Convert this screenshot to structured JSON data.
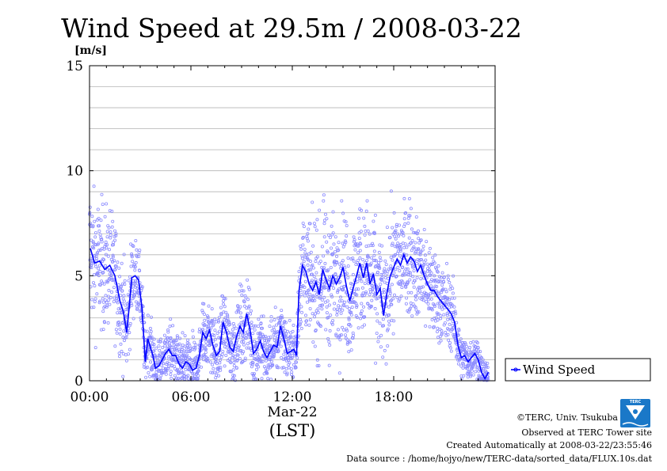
{
  "chart_data": {
    "type": "scatter",
    "title": "Wind Speed at 29.5m / 2008-03-22",
    "ylabel": "[m/s]",
    "xlabel": "(LST)",
    "date_label": "Mar-22",
    "x_unit": "hours",
    "xlim": [
      0,
      24
    ],
    "ylim": [
      0,
      15
    ],
    "yticks": [
      {
        "value": 0,
        "label": "0"
      },
      {
        "value": 5,
        "label": "5"
      },
      {
        "value": 10,
        "label": "10"
      },
      {
        "value": 15,
        "label": "15"
      }
    ],
    "xticks": [
      {
        "value": 0,
        "label": "00:00"
      },
      {
        "value": 6,
        "label": "06:00"
      },
      {
        "value": 12,
        "label": "12:00"
      },
      {
        "value": 18,
        "label": "18:00"
      }
    ],
    "grid": true,
    "legend_position": "right",
    "series": [
      {
        "name": "Wind Speed",
        "color": "#0000ff",
        "mean": [
          [
            0.05,
            6.3
          ],
          [
            0.3,
            5.6
          ],
          [
            0.6,
            5.7
          ],
          [
            0.9,
            5.3
          ],
          [
            1.2,
            5.5
          ],
          [
            1.5,
            5.0
          ],
          [
            1.8,
            3.8
          ],
          [
            2.0,
            3.3
          ],
          [
            2.2,
            2.3
          ],
          [
            2.35,
            3.5
          ],
          [
            2.5,
            4.9
          ],
          [
            2.7,
            5.0
          ],
          [
            2.9,
            4.8
          ],
          [
            3.1,
            3.5
          ],
          [
            3.3,
            0.9
          ],
          [
            3.45,
            2.0
          ],
          [
            3.6,
            1.6
          ],
          [
            3.75,
            1.2
          ],
          [
            3.9,
            0.6
          ],
          [
            4.1,
            0.7
          ],
          [
            4.3,
            1.0
          ],
          [
            4.5,
            1.3
          ],
          [
            4.7,
            1.5
          ],
          [
            4.9,
            1.2
          ],
          [
            5.1,
            1.2
          ],
          [
            5.3,
            0.8
          ],
          [
            5.5,
            0.6
          ],
          [
            5.7,
            0.9
          ],
          [
            5.9,
            0.8
          ],
          [
            6.1,
            0.5
          ],
          [
            6.3,
            0.6
          ],
          [
            6.5,
            1.2
          ],
          [
            6.7,
            2.3
          ],
          [
            6.9,
            2.0
          ],
          [
            7.1,
            2.4
          ],
          [
            7.3,
            1.7
          ],
          [
            7.5,
            1.2
          ],
          [
            7.7,
            1.4
          ],
          [
            7.9,
            2.8
          ],
          [
            8.1,
            2.3
          ],
          [
            8.3,
            1.6
          ],
          [
            8.5,
            1.4
          ],
          [
            8.7,
            2.1
          ],
          [
            8.9,
            2.6
          ],
          [
            9.1,
            2.3
          ],
          [
            9.3,
            3.2
          ],
          [
            9.5,
            2.4
          ],
          [
            9.7,
            1.3
          ],
          [
            9.9,
            1.5
          ],
          [
            10.1,
            1.9
          ],
          [
            10.3,
            1.4
          ],
          [
            10.5,
            1.1
          ],
          [
            10.7,
            1.4
          ],
          [
            10.9,
            1.7
          ],
          [
            11.1,
            1.6
          ],
          [
            11.3,
            2.6
          ],
          [
            11.5,
            2.0
          ],
          [
            11.7,
            1.3
          ],
          [
            11.9,
            1.4
          ],
          [
            12.1,
            1.5
          ],
          [
            12.25,
            1.2
          ],
          [
            12.4,
            4.3
          ],
          [
            12.6,
            5.5
          ],
          [
            12.8,
            5.2
          ],
          [
            13.0,
            4.6
          ],
          [
            13.2,
            4.3
          ],
          [
            13.4,
            4.7
          ],
          [
            13.6,
            4.1
          ],
          [
            13.8,
            5.3
          ],
          [
            14.0,
            4.8
          ],
          [
            14.2,
            4.4
          ],
          [
            14.4,
            5.0
          ],
          [
            14.6,
            4.6
          ],
          [
            14.8,
            4.9
          ],
          [
            15.0,
            5.4
          ],
          [
            15.2,
            4.5
          ],
          [
            15.4,
            3.8
          ],
          [
            15.6,
            4.4
          ],
          [
            15.8,
            5.0
          ],
          [
            16.0,
            5.6
          ],
          [
            16.2,
            4.9
          ],
          [
            16.4,
            5.6
          ],
          [
            16.6,
            4.6
          ],
          [
            16.8,
            5.1
          ],
          [
            17.0,
            4.1
          ],
          [
            17.2,
            4.4
          ],
          [
            17.4,
            3.1
          ],
          [
            17.6,
            4.2
          ],
          [
            17.8,
            5.0
          ],
          [
            18.0,
            5.4
          ],
          [
            18.2,
            5.8
          ],
          [
            18.4,
            5.5
          ],
          [
            18.6,
            6.0
          ],
          [
            18.8,
            5.6
          ],
          [
            19.0,
            5.9
          ],
          [
            19.2,
            5.7
          ],
          [
            19.4,
            5.2
          ],
          [
            19.6,
            5.5
          ],
          [
            19.8,
            5.0
          ],
          [
            20.0,
            4.6
          ],
          [
            20.2,
            4.3
          ],
          [
            20.4,
            4.3
          ],
          [
            20.6,
            4.0
          ],
          [
            20.8,
            3.8
          ],
          [
            21.0,
            3.6
          ],
          [
            21.2,
            3.4
          ],
          [
            21.4,
            3.2
          ],
          [
            21.6,
            2.8
          ],
          [
            21.8,
            1.7
          ],
          [
            22.0,
            1.1
          ],
          [
            22.2,
            1.2
          ],
          [
            22.4,
            0.9
          ],
          [
            22.6,
            1.1
          ],
          [
            22.8,
            1.3
          ],
          [
            23.0,
            1.0
          ],
          [
            23.2,
            0.4
          ],
          [
            23.4,
            0.1
          ],
          [
            23.6,
            0.4
          ]
        ],
        "spread": [
          [
            0.0,
            1.6
          ],
          [
            2.0,
            1.2
          ],
          [
            3.3,
            0.6
          ],
          [
            6.3,
            0.7
          ],
          [
            9.0,
            0.9
          ],
          [
            12.3,
            0.6
          ],
          [
            12.5,
            1.4
          ],
          [
            15.0,
            1.5
          ],
          [
            18.0,
            1.3
          ],
          [
            21.0,
            1.0
          ],
          [
            22.0,
            0.5
          ],
          [
            24.0,
            0.4
          ]
        ]
      }
    ]
  },
  "credits": {
    "line1": "©TERC, Univ. Tsukuba",
    "line2": "Observed at TERC Tower site",
    "line3": "Created Automatically at 2008-03-22/23:55:46",
    "line4": "Data source : /home/hojyo/new/TERC-data/sorted_data/FLUX.10s.dat"
  },
  "logo": {
    "text": "TERC",
    "color": "#1a78c8"
  }
}
